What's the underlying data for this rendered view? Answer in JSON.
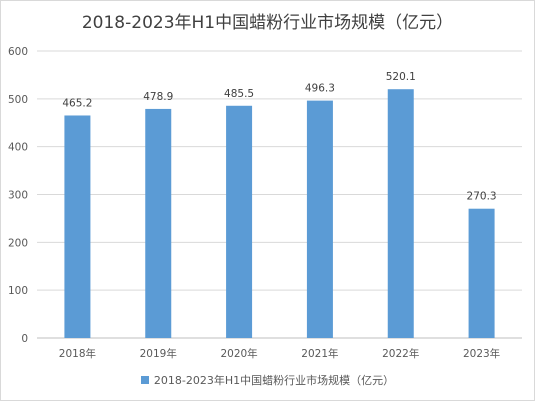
{
  "chart_data": {
    "type": "bar",
    "title": "2018-2023年H1中国蜡粉行业市场规模（亿元）",
    "categories": [
      "2018年",
      "2019年",
      "2020年",
      "2021年",
      "2022年",
      "2023年"
    ],
    "series": [
      {
        "name": "2018-2023年H1中国蜡粉行业市场规模（亿元）",
        "values": [
          465.2,
          478.9,
          485.5,
          496.3,
          520.1,
          270.3
        ],
        "color": "#5B9BD5"
      }
    ],
    "yticks": [
      "0",
      "100",
      "200",
      "300",
      "400",
      "500",
      "600"
    ],
    "ylim": [
      0,
      600
    ],
    "grid": true,
    "legend_position": "bottom"
  }
}
